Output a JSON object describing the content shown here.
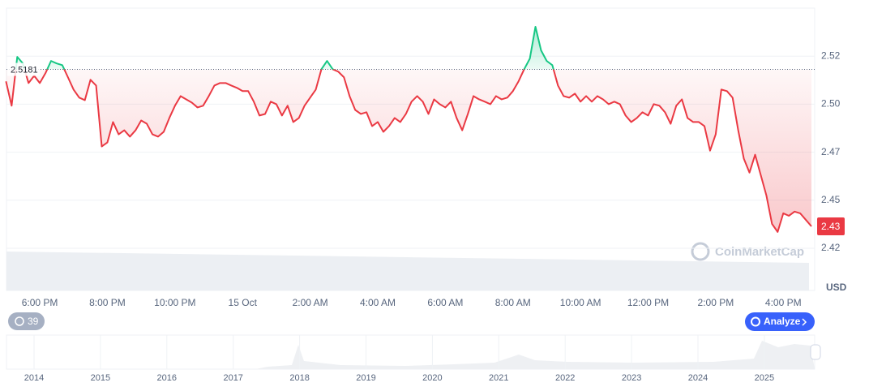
{
  "chart_data": {
    "type": "line",
    "categories": [
      null,
      null,
      null,
      null,
      null,
      null,
      "6:00 PM",
      null,
      null,
      null,
      null,
      null,
      null,
      null,
      null,
      null,
      null,
      null,
      "8:00 PM",
      null,
      null,
      null,
      null,
      null,
      null,
      null,
      null,
      null,
      null,
      null,
      "10:00 PM",
      null,
      null,
      null,
      null,
      null,
      null,
      null,
      null,
      null,
      null,
      null,
      "15 Oct",
      null,
      null,
      null,
      null,
      null,
      null,
      null,
      null,
      null,
      null,
      null,
      "2:00 AM",
      null,
      null,
      null,
      null,
      null,
      null,
      null,
      null,
      null,
      null,
      null,
      "4:00 AM",
      null,
      null,
      null,
      null,
      null,
      null,
      null,
      null,
      null,
      null,
      null,
      "6:00 AM",
      null,
      null,
      null,
      null,
      null,
      null,
      null,
      null,
      null,
      null,
      null,
      "8:00 AM",
      null,
      null,
      null,
      null,
      null,
      null,
      null,
      null,
      null,
      null,
      null,
      "10:00 AM",
      null,
      null,
      null,
      null,
      null,
      null,
      null,
      null,
      null,
      null,
      null,
      "12:00 PM",
      null,
      null,
      null,
      null,
      null,
      null,
      null,
      null,
      null,
      null,
      null,
      "2:00 PM",
      null,
      null,
      null,
      null,
      null,
      null,
      null,
      null,
      null,
      null,
      null,
      "4:00 PM",
      null,
      null,
      null,
      null,
      null
    ],
    "values": [
      2.5119,
      2.4992,
      2.5246,
      2.5212,
      2.511,
      2.5148,
      2.511,
      2.5161,
      2.5225,
      2.5212,
      2.5203,
      2.514,
      2.5076,
      2.5034,
      2.5021,
      2.5127,
      2.5097,
      2.478,
      2.4801,
      2.4907,
      2.4843,
      2.4864,
      2.4831,
      2.4864,
      2.4915,
      2.4898,
      2.4843,
      2.4831,
      2.4856,
      2.4928,
      2.4992,
      2.5042,
      2.5025,
      2.5008,
      2.4983,
      2.4992,
      2.5042,
      2.5097,
      2.511,
      2.511,
      2.5097,
      2.5085,
      2.5068,
      2.5068,
      2.5013,
      2.4941,
      2.4949,
      2.5013,
      2.5,
      2.4941,
      2.4992,
      2.4907,
      2.4928,
      2.4992,
      2.5034,
      2.5076,
      2.5182,
      2.5225,
      2.5182,
      2.5169,
      2.514,
      2.5042,
      2.497,
      2.4949,
      2.4958,
      2.4886,
      2.4907,
      2.4856,
      2.4886,
      2.4928,
      2.4907,
      2.4949,
      2.5013,
      2.5042,
      2.5013,
      2.4949,
      2.5025,
      2.5,
      2.4983,
      2.5013,
      2.4928,
      2.4864,
      2.4949,
      2.5042,
      2.5025,
      2.5013,
      2.5,
      2.5042,
      2.5025,
      2.5034,
      2.5068,
      2.5119,
      2.5182,
      2.5237,
      2.5403,
      2.528,
      2.5225,
      2.5203,
      2.5097,
      2.5042,
      2.5034,
      2.5055,
      2.5013,
      2.5042,
      2.5013,
      2.5042,
      2.5025,
      2.5,
      2.5013,
      2.5,
      2.4941,
      2.4907,
      2.4928,
      2.4958,
      2.4941,
      2.5,
      2.4992,
      2.4958,
      2.4898,
      2.4992,
      2.5025,
      2.4928,
      2.4907,
      2.4907,
      2.4886,
      2.4758,
      2.4843,
      2.5076,
      2.5068,
      2.5034,
      2.4864,
      2.4716,
      2.4644,
      2.4737,
      2.4631,
      2.4525,
      2.4377,
      2.4335,
      2.4432,
      2.4419,
      2.4441,
      2.4432,
      2.4398,
      2.4364
    ],
    "up_color": "#16c784",
    "down_color": "#ea3943",
    "baseline": 2.5181,
    "last_value_label": "2.43",
    "ylim": [
      2.425,
      2.55
    ],
    "yticks": [
      {
        "value": 2.425,
        "label": "2.42"
      },
      2.45,
      {
        "value": 2.475,
        "label": "2.47"
      },
      {
        "value": 2.5,
        "label": "2.50"
      },
      {
        "value": 2.525,
        "label": "2.52"
      }
    ],
    "ylabel": "USD",
    "grid": true
  },
  "watermark": "CoinMarketCap",
  "range_badge": 39,
  "analyze_button": "Analyze",
  "navigator": {
    "years": [
      2014,
      2015,
      2016,
      2017,
      2018,
      2019,
      2020,
      2021,
      2022,
      2023,
      2024,
      2025
    ]
  }
}
